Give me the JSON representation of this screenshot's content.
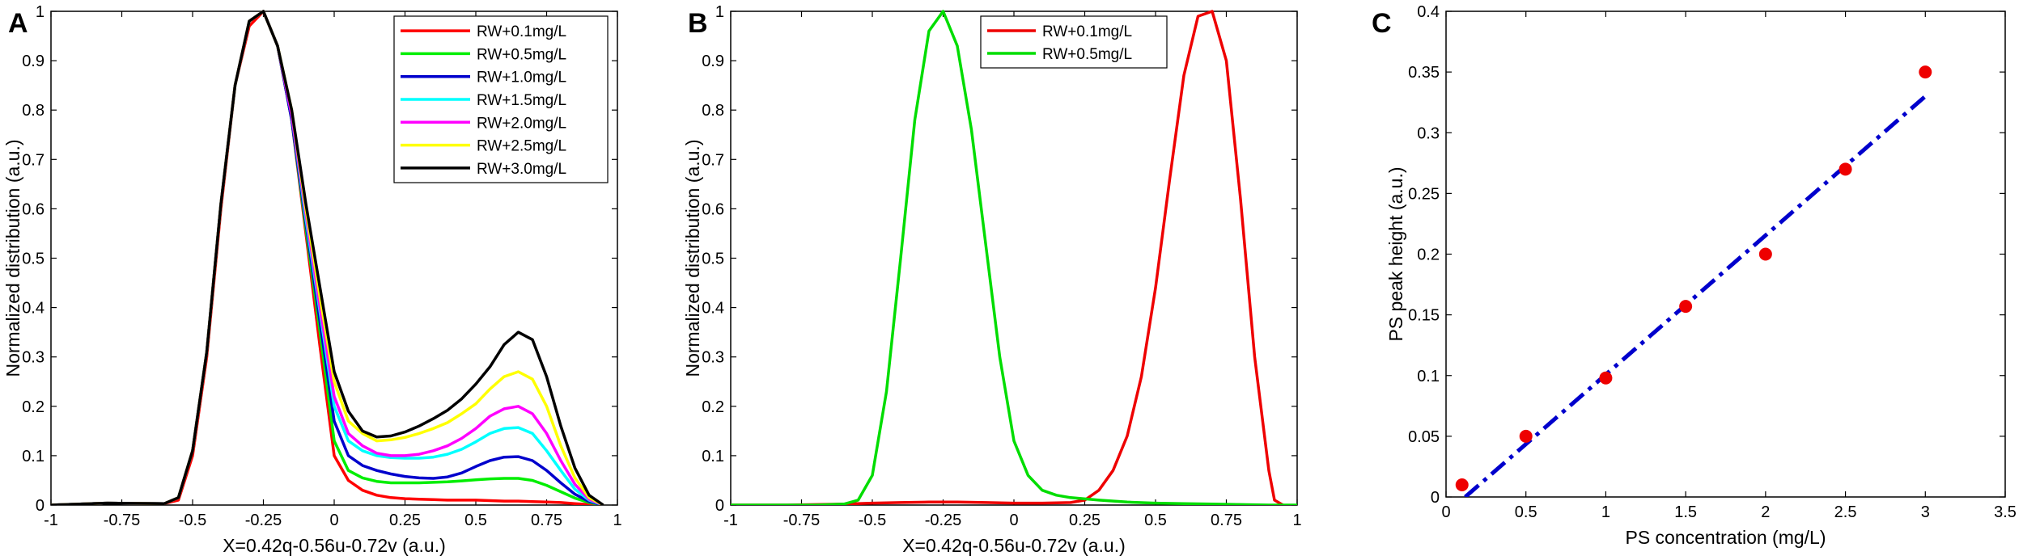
{
  "chart_data": [
    {
      "panel": "A",
      "type": "line",
      "xlabel": "X=0.42q-0.56u-0.72v (a.u.)",
      "ylabel": "Normalized distribution (a.u.)",
      "xlim": [
        -1,
        1
      ],
      "ylim": [
        0,
        1
      ],
      "xticks": [
        "-1",
        "-0.75",
        "-0.5",
        "-0.25",
        "0",
        "0.25",
        "0.5",
        "0.75",
        "1"
      ],
      "yticks": [
        "0",
        "0.1",
        "0.2",
        "0.3",
        "0.4",
        "0.5",
        "0.6",
        "0.7",
        "0.8",
        "0.9",
        "1"
      ],
      "legend_position": "top-right",
      "x": [
        -1,
        -0.8,
        -0.6,
        -0.55,
        -0.5,
        -0.45,
        -0.4,
        -0.35,
        -0.3,
        -0.25,
        -0.2,
        -0.15,
        -0.1,
        -0.05,
        0,
        0.05,
        0.1,
        0.15,
        0.2,
        0.25,
        0.3,
        0.35,
        0.4,
        0.45,
        0.5,
        0.55,
        0.6,
        0.65,
        0.7,
        0.75,
        0.8,
        0.85,
        0.9,
        0.95
      ],
      "series": [
        {
          "name": "RW+0.1mg/L",
          "color": "#ff0000",
          "values": [
            0,
            0.004,
            0.003,
            0.01,
            0.1,
            0.3,
            0.6,
            0.85,
            0.97,
            1.0,
            0.93,
            0.78,
            0.55,
            0.32,
            0.1,
            0.05,
            0.03,
            0.02,
            0.015,
            0.013,
            0.012,
            0.011,
            0.01,
            0.01,
            0.01,
            0.009,
            0.008,
            0.008,
            0.007,
            0.006,
            0.005,
            0.003,
            0.001,
            0
          ]
        },
        {
          "name": "RW+0.5mg/L",
          "color": "#00ee00",
          "values": [
            0,
            0.004,
            0.003,
            0.015,
            0.11,
            0.31,
            0.61,
            0.85,
            0.98,
            1.0,
            0.93,
            0.78,
            0.56,
            0.35,
            0.13,
            0.07,
            0.055,
            0.048,
            0.045,
            0.045,
            0.045,
            0.046,
            0.047,
            0.049,
            0.051,
            0.053,
            0.054,
            0.054,
            0.05,
            0.04,
            0.027,
            0.014,
            0.005,
            0
          ]
        },
        {
          "name": "RW+1.0mg/L",
          "color": "#0000cc",
          "values": [
            0,
            0.004,
            0.003,
            0.015,
            0.11,
            0.31,
            0.61,
            0.85,
            0.98,
            1.0,
            0.93,
            0.78,
            0.57,
            0.37,
            0.17,
            0.1,
            0.08,
            0.07,
            0.063,
            0.058,
            0.055,
            0.054,
            0.057,
            0.065,
            0.078,
            0.09,
            0.097,
            0.098,
            0.09,
            0.07,
            0.045,
            0.022,
            0.007,
            0
          ]
        },
        {
          "name": "RW+1.5mg/L",
          "color": "#00ffff",
          "values": [
            0,
            0.004,
            0.003,
            0.015,
            0.11,
            0.31,
            0.61,
            0.85,
            0.98,
            1.0,
            0.93,
            0.79,
            0.58,
            0.39,
            0.2,
            0.13,
            0.11,
            0.1,
            0.096,
            0.095,
            0.095,
            0.097,
            0.103,
            0.113,
            0.128,
            0.145,
            0.155,
            0.157,
            0.145,
            0.11,
            0.07,
            0.032,
            0.01,
            0
          ]
        },
        {
          "name": "RW+2.0mg/L",
          "color": "#ff00ff",
          "values": [
            0,
            0.004,
            0.003,
            0.015,
            0.11,
            0.31,
            0.61,
            0.85,
            0.98,
            1.0,
            0.93,
            0.79,
            0.59,
            0.4,
            0.22,
            0.145,
            0.12,
            0.105,
            0.1,
            0.1,
            0.103,
            0.11,
            0.12,
            0.135,
            0.155,
            0.18,
            0.195,
            0.2,
            0.185,
            0.145,
            0.09,
            0.042,
            0.012,
            0
          ]
        },
        {
          "name": "RW+2.5mg/L",
          "color": "#ffff00",
          "values": [
            0,
            0.004,
            0.003,
            0.015,
            0.11,
            0.31,
            0.61,
            0.85,
            0.98,
            1.0,
            0.93,
            0.8,
            0.6,
            0.42,
            0.25,
            0.17,
            0.145,
            0.13,
            0.132,
            0.137,
            0.145,
            0.155,
            0.167,
            0.185,
            0.205,
            0.235,
            0.26,
            0.27,
            0.255,
            0.2,
            0.12,
            0.055,
            0.015,
            0
          ]
        },
        {
          "name": "RW+3.0mg/L",
          "color": "#000000",
          "values": [
            0,
            0.004,
            0.003,
            0.015,
            0.11,
            0.31,
            0.61,
            0.85,
            0.98,
            1.0,
            0.93,
            0.8,
            0.61,
            0.44,
            0.27,
            0.19,
            0.15,
            0.138,
            0.14,
            0.148,
            0.16,
            0.175,
            0.192,
            0.215,
            0.245,
            0.28,
            0.325,
            0.35,
            0.335,
            0.26,
            0.16,
            0.075,
            0.02,
            0
          ]
        }
      ]
    },
    {
      "panel": "B",
      "type": "line",
      "xlabel": "X=0.42q-0.56u-0.72v (a.u.)",
      "ylabel": "Normalized distribution (a.u.)",
      "xlim": [
        -1,
        1
      ],
      "ylim": [
        0,
        1
      ],
      "xticks": [
        "-1",
        "-0.75",
        "-0.5",
        "-0.25",
        "0",
        "0.25",
        "0.5",
        "0.75",
        "1"
      ],
      "yticks": [
        "0",
        "0.1",
        "0.2",
        "0.3",
        "0.4",
        "0.5",
        "0.6",
        "0.7",
        "0.8",
        "0.9",
        "1"
      ],
      "legend_position": "top-right",
      "series": [
        {
          "name": "RW+0.1mg/L",
          "color": "#ee0000",
          "x": [
            -1,
            -0.8,
            -0.6,
            -0.5,
            -0.4,
            -0.3,
            -0.2,
            -0.1,
            0,
            0.1,
            0.2,
            0.25,
            0.3,
            0.35,
            0.4,
            0.45,
            0.5,
            0.55,
            0.6,
            0.65,
            0.7,
            0.75,
            0.8,
            0.85,
            0.9,
            0.92,
            0.95
          ],
          "values": [
            0,
            0,
            0.002,
            0.004,
            0.005,
            0.006,
            0.006,
            0.005,
            0.004,
            0.004,
            0.005,
            0.01,
            0.03,
            0.07,
            0.14,
            0.26,
            0.44,
            0.66,
            0.87,
            0.99,
            1.0,
            0.9,
            0.62,
            0.3,
            0.07,
            0.01,
            0
          ]
        },
        {
          "name": "RW+0.5mg/L",
          "color": "#00dd00",
          "x": [
            -1,
            -0.7,
            -0.6,
            -0.55,
            -0.5,
            -0.45,
            -0.4,
            -0.35,
            -0.3,
            -0.25,
            -0.2,
            -0.15,
            -0.1,
            -0.05,
            0,
            0.05,
            0.1,
            0.15,
            0.2,
            0.3,
            0.4,
            0.5,
            0.6,
            0.7,
            0.8,
            0.9,
            1
          ],
          "values": [
            0,
            0,
            0.002,
            0.01,
            0.06,
            0.23,
            0.5,
            0.78,
            0.96,
            1.0,
            0.93,
            0.76,
            0.53,
            0.3,
            0.13,
            0.06,
            0.03,
            0.02,
            0.015,
            0.01,
            0.006,
            0.004,
            0.003,
            0.002,
            0.001,
            0,
            0
          ]
        }
      ]
    },
    {
      "panel": "C",
      "type": "scatter",
      "xlabel": "PS concentration (mg/L)",
      "ylabel": "PS peak height (a.u.)",
      "xlim": [
        0,
        3.5
      ],
      "ylim": [
        0,
        0.4
      ],
      "xticks": [
        "0",
        "0.5",
        "1",
        "1.5",
        "2",
        "2.5",
        "3",
        "3.5"
      ],
      "yticks": [
        "0",
        "0.05",
        "0.1",
        "0.15",
        "0.2",
        "0.25",
        "0.3",
        "0.35",
        "0.4"
      ],
      "points": {
        "color": "#ee0000",
        "x": [
          0.1,
          0.5,
          1.0,
          1.5,
          2.0,
          2.5,
          3.0
        ],
        "y": [
          0.01,
          0.05,
          0.098,
          0.157,
          0.2,
          0.27,
          0.35
        ]
      },
      "fit": {
        "color": "#0000cc",
        "style": "dash-dot",
        "x": [
          0.12,
          3.0
        ],
        "y": [
          0.0,
          0.33
        ]
      }
    }
  ]
}
